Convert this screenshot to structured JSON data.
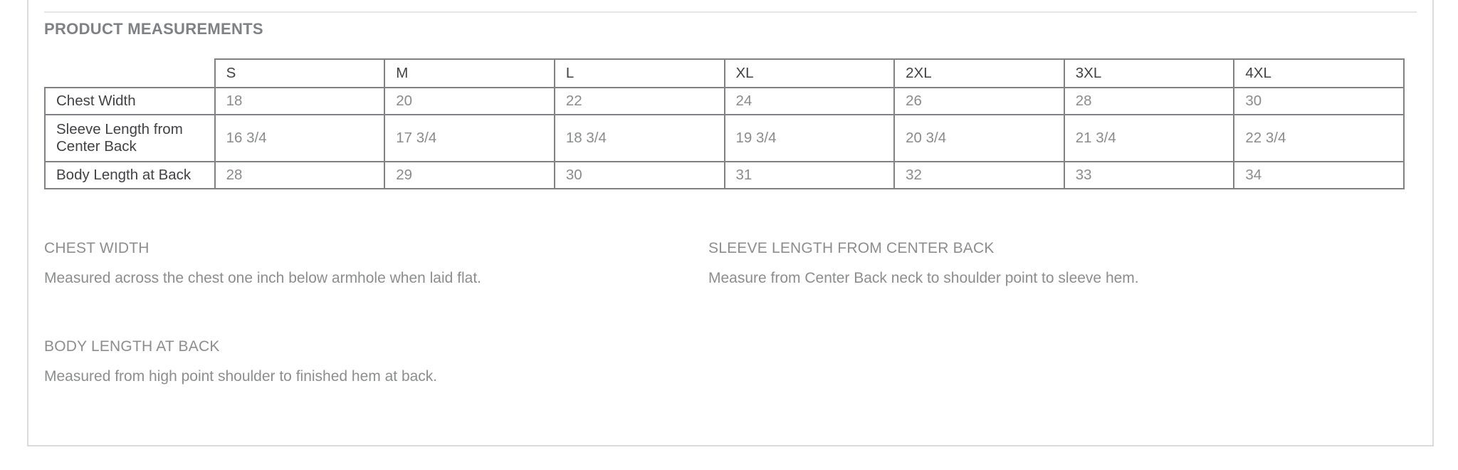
{
  "panel": {
    "title": "PRODUCT MEASUREMENTS"
  },
  "size_table": {
    "sizes": [
      "S",
      "M",
      "L",
      "XL",
      "2XL",
      "3XL",
      "4XL"
    ],
    "rows": [
      {
        "label": "Chest Width",
        "values": [
          "18",
          "20",
          "22",
          "24",
          "26",
          "28",
          "30"
        ]
      },
      {
        "label": "Sleeve Length from Center Back",
        "values": [
          "16 3/4",
          "17 3/4",
          "18 3/4",
          "19 3/4",
          "20 3/4",
          "21 3/4",
          "22 3/4"
        ]
      },
      {
        "label": "Body Length at Back",
        "values": [
          "28",
          "29",
          "30",
          "31",
          "32",
          "33",
          "34"
        ]
      }
    ]
  },
  "measurement_notes": [
    {
      "heading": "CHEST WIDTH",
      "description": "Measured across the chest one inch below armhole when laid flat."
    },
    {
      "heading": "SLEEVE LENGTH FROM CENTER BACK",
      "description": "Measure from Center Back neck to shoulder point to sleeve hem."
    },
    {
      "heading": "BODY LENGTH AT BACK",
      "description": "Measured from high point shoulder to finished hem at back."
    }
  ],
  "colors": {
    "panel_border": "#dbdbdb",
    "divider": "#e5e5e5",
    "table_border": "#808285",
    "dark_text": "#414245",
    "value_text": "#8a8b8d",
    "note_text": "#8c8d8f",
    "title_text": "#7f8184"
  }
}
